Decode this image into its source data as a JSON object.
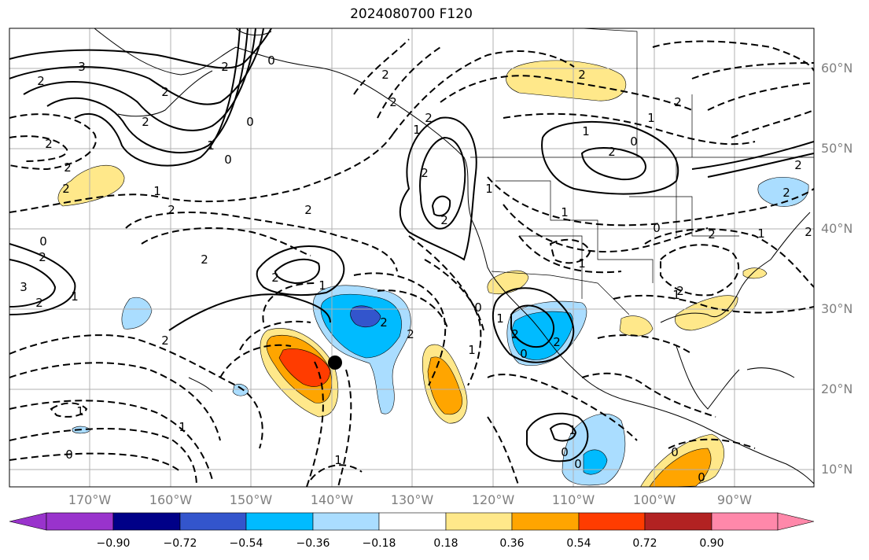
{
  "title": "2024080700 F120",
  "lat_labels": [
    "60°N",
    "50°N",
    "40°N",
    "30°N",
    "20°N",
    "10°N"
  ],
  "lon_labels": [
    "170°W",
    "160°W",
    "150°W",
    "140°W",
    "130°W",
    "120°W",
    "110°W",
    "100°W",
    "90°W"
  ],
  "colorbar": {
    "ticks": [
      "−0.90",
      "−0.72",
      "−0.54",
      "−0.36",
      "−0.18",
      "0.18",
      "0.36",
      "0.54",
      "0.72",
      "0.90"
    ],
    "colors": [
      "#9933cc",
      "#000088",
      "#3355cc",
      "#00bbff",
      "#aaddff",
      "#ffffff",
      "#ffe88a",
      "#ffa500",
      "#ff3c00",
      "#b22222",
      "#ff88aa"
    ]
  },
  "contour_labels": [
    "3",
    "2",
    "2",
    "2",
    "0",
    "1",
    "0",
    "2",
    "2",
    "2",
    "1",
    "2",
    "0",
    "2",
    "3",
    "1",
    "2",
    "2",
    "2",
    "1",
    "2",
    "2",
    "2",
    "0",
    "2",
    "1",
    "2",
    "2",
    "2",
    "1",
    "2",
    "1",
    "0",
    "2",
    "1",
    "1",
    "1",
    "0",
    "0",
    "1",
    "2",
    "2",
    "1",
    "2",
    "2",
    "2",
    "1",
    "0",
    "1",
    "1",
    "1",
    "0",
    "0",
    "0",
    "1",
    "1",
    "2",
    "2",
    "2",
    "2",
    "2",
    "0",
    "2",
    "0"
  ],
  "marker": "storm-center",
  "colors": {
    "axis": "#000000",
    "grid": "#b0b0b0",
    "coast": "#000000",
    "tick_label": "#7f7f7f"
  }
}
